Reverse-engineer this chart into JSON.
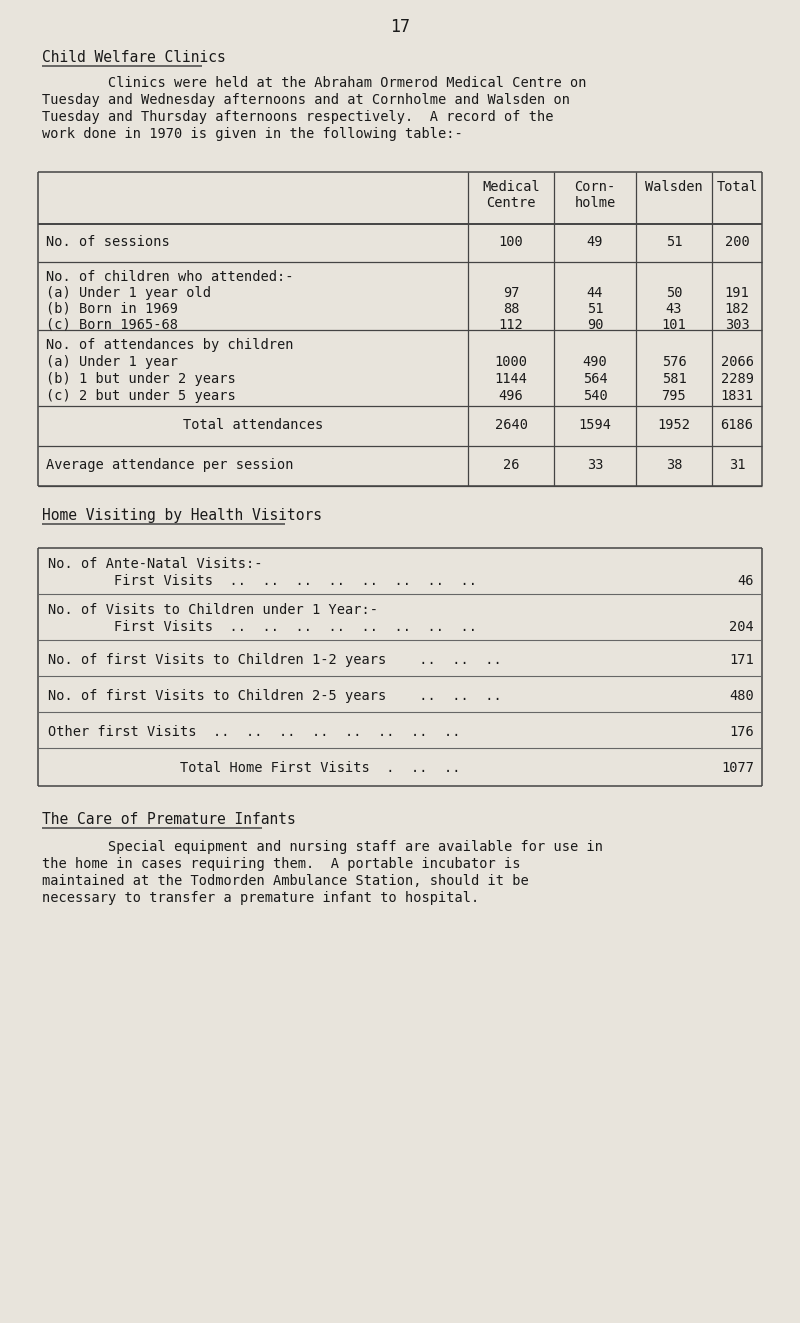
{
  "page_number": "17",
  "bg_color": "#e8e4dc",
  "text_color": "#1a1a1a",
  "section1_title": "Child Welfare Clinics",
  "section1_para_lines": [
    "        Clinics were held at the Abraham Ormerod Medical Centre on",
    "Tuesday and Wednesday afternoons and at Cornholme and Walsden on",
    "Tuesday and Thursday afternoons respectively.  A record of the",
    "work done in 1970 is given in the following table:-"
  ],
  "table1_col_labels": [
    "Medical\nCentre",
    "Corn-\nholme",
    "Walsden",
    "Total"
  ],
  "t1_row0_label": "No. of sessions",
  "t1_row0_vals": [
    "100",
    "49",
    "51",
    "200"
  ],
  "t1_row1_labels": [
    "No. of children who attended:-",
    "(a) Under 1 year old",
    "(b) Born in 1969",
    "(c) Born 1965-68"
  ],
  "t1_row1_vals": [
    [
      "97",
      "44",
      "50",
      "191"
    ],
    [
      "88",
      "51",
      "43",
      "182"
    ],
    [
      "112",
      "90",
      "101",
      "303"
    ]
  ],
  "t1_row2_labels": [
    "No. of attendances by children",
    "(a) Under 1 year",
    "(b) 1 but under 2 years",
    "(c) 2 but under 5 years"
  ],
  "t1_row2_vals": [
    [
      "1000",
      "490",
      "576",
      "2066"
    ],
    [
      "1144",
      "564",
      "581",
      "2289"
    ],
    [
      "496",
      "540",
      "795",
      "1831"
    ]
  ],
  "t1_row3_label": "    Total attendances",
  "t1_row3_vals": [
    "2640",
    "1594",
    "1952",
    "6186"
  ],
  "t1_row4_label": "Average attendance per session",
  "t1_row4_vals": [
    "26",
    "33",
    "38",
    "31"
  ],
  "section2_title": "Home Visiting by Health Visitors",
  "t2_rows": [
    {
      "label1": "No. of Ante-Natal Visits:-",
      "label2": "        First Visits  ..  ..  ..  ..  ..  ..  ..  ..",
      "val": "46"
    },
    {
      "label1": "No. of Visits to Children under 1 Year:-",
      "label2": "        First Visits  ..  ..  ..  ..  ..  ..  ..  ..",
      "val": "204"
    },
    {
      "label1": "No. of first Visits to Children 1-2 years    ..  ..  .. ",
      "label2": "",
      "val": "171"
    },
    {
      "label1": "No. of first Visits to Children 2-5 years    ..  ..  .. ",
      "label2": "",
      "val": "480"
    },
    {
      "label1": "Other first Visits  ..  ..  ..  ..  ..  ..  ..  ..",
      "label2": "",
      "val": "176"
    },
    {
      "label1": "                Total Home First Visits  .  ..  ..",
      "label2": "",
      "val": "1077"
    }
  ],
  "section3_title": "The Care of Premature Infants",
  "section3_para_lines": [
    "        Special equipment and nursing staff are available for use in",
    "the home in cases requiring them.  A portable incubator is",
    "maintained at the Todmorden Ambulance Station, should it be",
    "necessary to transfer a premature infant to hospital."
  ],
  "fs_body": 9.8,
  "fs_title": 10.5,
  "fs_page": 12
}
